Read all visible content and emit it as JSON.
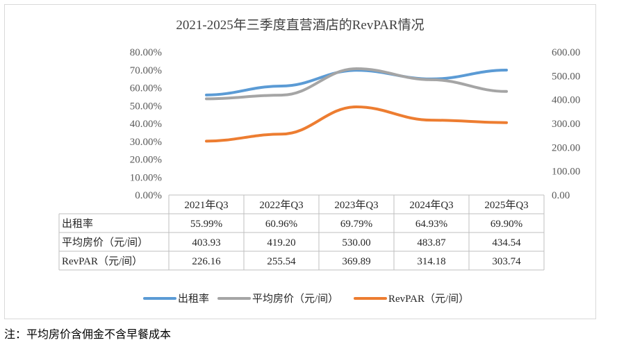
{
  "chart_data": {
    "type": "line",
    "title": "2021-2025年三季度直营酒店的RevPAR情况",
    "categories": [
      "2021年Q3",
      "2022年Q3",
      "2023年Q3",
      "2024年Q3",
      "2025年Q3"
    ],
    "left_axis": {
      "range": [
        0,
        80
      ],
      "ticks": [
        "80.00%",
        "70.00%",
        "60.00%",
        "50.00%",
        "40.00%",
        "30.00%",
        "20.00%",
        "10.00%",
        "0.00%"
      ]
    },
    "right_axis": {
      "range": [
        0,
        600
      ],
      "ticks": [
        "600.00",
        "500.00",
        "400.00",
        "300.00",
        "200.00",
        "100.00",
        "0.00"
      ]
    },
    "series": [
      {
        "name": "出租率",
        "axis": "left",
        "color": "#5B9BD5",
        "values": [
          55.99,
          60.96,
          69.79,
          64.93,
          69.9
        ],
        "labels": [
          "55.99%",
          "60.96%",
          "69.79%",
          "64.93%",
          "69.90%"
        ]
      },
      {
        "name": "平均房价（元/间）",
        "axis": "right",
        "color": "#A5A5A5",
        "values": [
          403.93,
          419.2,
          530.0,
          483.87,
          434.54
        ],
        "labels": [
          "403.93",
          "419.20",
          "530.00",
          "483.87",
          "434.54"
        ]
      },
      {
        "name": "RevPAR（元/间）",
        "axis": "right",
        "color": "#ED7D31",
        "values": [
          226.16,
          255.54,
          369.89,
          314.18,
          303.74
        ],
        "labels": [
          "226.16",
          "255.54",
          "369.89",
          "314.18",
          "303.74"
        ]
      }
    ],
    "table_row_labels": [
      "出租率",
      "平均房价（元/间）",
      "RevPAR（元/间）"
    ],
    "grid": false,
    "legend_position": "bottom"
  },
  "footnote": "注：平均房价含佣金不含早餐成本"
}
